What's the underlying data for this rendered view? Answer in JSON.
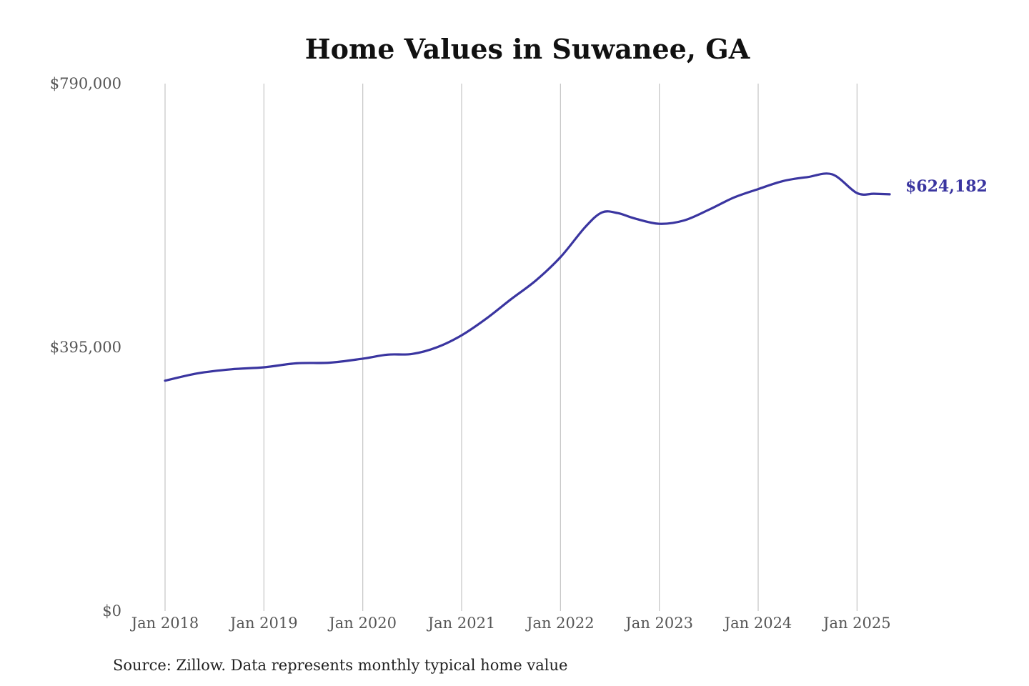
{
  "chart_data": {
    "type": "line",
    "title": "Home Values in Suwanee, GA",
    "xlabel": "",
    "ylabel": "",
    "ylim": [
      0,
      790000
    ],
    "y_ticks": [
      "$790,000",
      "$395,000",
      "$0"
    ],
    "y_tick_values": [
      790000,
      395000,
      0
    ],
    "x_ticks": [
      "Jan 2018",
      "Jan 2019",
      "Jan 2020",
      "Jan 2021",
      "Jan 2022",
      "Jan 2023",
      "Jan 2024",
      "Jan 2025"
    ],
    "x_tick_values": [
      2018.0,
      2019.0,
      2020.0,
      2021.0,
      2022.0,
      2023.0,
      2024.0,
      2025.0
    ],
    "xlim": [
      2018.0,
      2025.33
    ],
    "grid": "vertical",
    "legend": "none",
    "color": "#3a35a0",
    "end_label": "$624,182",
    "series": [
      {
        "x": [
          2018.0,
          2018.33,
          2018.67,
          2019.0,
          2019.33,
          2019.67,
          2020.0,
          2020.25,
          2020.5,
          2020.75,
          2021.0,
          2021.25,
          2021.5,
          2021.75,
          2022.0,
          2022.25,
          2022.42,
          2022.58,
          2022.75,
          2023.0,
          2023.25,
          2023.5,
          2023.75,
          2024.0,
          2024.25,
          2024.5,
          2024.75,
          2025.0,
          2025.17,
          2025.33
        ],
        "y": [
          345000,
          356000,
          362000,
          365000,
          371000,
          372000,
          378000,
          384000,
          385000,
          395000,
          413000,
          438000,
          467000,
          495000,
          530000,
          575000,
          597000,
          596000,
          588000,
          580000,
          585000,
          601000,
          619000,
          632000,
          644000,
          650000,
          654000,
          626000,
          625000,
          624182
        ]
      }
    ]
  },
  "source": "Source: Zillow. Data represents monthly typical home value"
}
